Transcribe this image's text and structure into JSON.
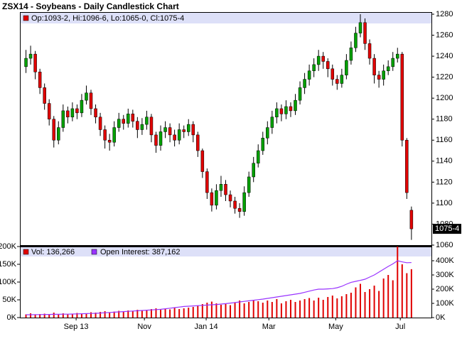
{
  "chart_data": {
    "type": "candlestick",
    "title": "ZSX14 - Soybeans - Daily Candlestick Chart",
    "info": "Op:1093-2, Hi:1096-6, Lo:1065-0, Cl:1075-4",
    "last_label": "1075-4",
    "up_color": "#00a000",
    "down_color": "#e00000",
    "xlim": [
      -1,
      87
    ],
    "xticks": [
      {
        "value": 10.8,
        "label": "Sep 13"
      },
      {
        "value": 25.5,
        "label": "Nov"
      },
      {
        "value": 38.8,
        "label": "Jan 14"
      },
      {
        "value": 52.3,
        "label": "Mar"
      },
      {
        "value": 66.7,
        "label": "May"
      },
      {
        "value": 80.6,
        "label": "Jul"
      }
    ],
    "ylim": [
      1060,
      1280
    ],
    "yticks": [
      1060,
      1080,
      1100,
      1120,
      1140,
      1160,
      1180,
      1200,
      1220,
      1240,
      1260,
      1280
    ],
    "open": [
      1230,
      1238,
      1242,
      1225,
      1210,
      1195,
      1180,
      1160,
      1172,
      1188,
      1182,
      1190,
      1186,
      1198,
      1205,
      1190,
      1182,
      1170,
      1160,
      1158,
      1172,
      1180,
      1176,
      1185,
      1178,
      1170,
      1175,
      1182,
      1165,
      1155,
      1168,
      1172,
      1165,
      1160,
      1170,
      1168,
      1175,
      1165,
      1150,
      1130,
      1110,
      1098,
      1112,
      1118,
      1108,
      1102,
      1095,
      1092,
      1110,
      1125,
      1138,
      1150,
      1162,
      1172,
      1182,
      1190,
      1185,
      1192,
      1188,
      1198,
      1210,
      1218,
      1226,
      1232,
      1240,
      1235,
      1228,
      1218,
      1214,
      1222,
      1236,
      1248,
      1262,
      1272,
      1252,
      1238,
      1222,
      1218,
      1226,
      1230,
      1238,
      1242,
      1160,
      1093.25
    ],
    "high": [
      1246,
      1250,
      1245,
      1228,
      1214,
      1199,
      1183,
      1178,
      1194,
      1192,
      1196,
      1194,
      1204,
      1212,
      1208,
      1194,
      1186,
      1174,
      1166,
      1178,
      1186,
      1184,
      1190,
      1189,
      1182,
      1181,
      1188,
      1185,
      1168,
      1174,
      1178,
      1176,
      1170,
      1176,
      1174,
      1180,
      1178,
      1168,
      1152,
      1133,
      1114,
      1118,
      1126,
      1122,
      1112,
      1106,
      1100,
      1116,
      1130,
      1144,
      1156,
      1168,
      1178,
      1188,
      1196,
      1194,
      1198,
      1196,
      1204,
      1216,
      1224,
      1232,
      1238,
      1246,
      1244,
      1238,
      1232,
      1222,
      1228,
      1242,
      1254,
      1268,
      1280,
      1276,
      1256,
      1242,
      1226,
      1232,
      1236,
      1244,
      1248,
      1244,
      1162,
      1096.75
    ],
    "low": [
      1224,
      1232,
      1218,
      1204,
      1189,
      1174,
      1153,
      1156,
      1168,
      1176,
      1178,
      1180,
      1182,
      1194,
      1184,
      1176,
      1164,
      1152,
      1150,
      1154,
      1168,
      1170,
      1172,
      1172,
      1162,
      1165,
      1170,
      1158,
      1148,
      1150,
      1162,
      1158,
      1154,
      1156,
      1162,
      1164,
      1158,
      1144,
      1124,
      1104,
      1092,
      1094,
      1106,
      1102,
      1096,
      1090,
      1086,
      1088,
      1106,
      1120,
      1134,
      1146,
      1156,
      1166,
      1176,
      1178,
      1180,
      1182,
      1184,
      1194,
      1204,
      1212,
      1220,
      1226,
      1228,
      1220,
      1212,
      1208,
      1210,
      1218,
      1232,
      1244,
      1258,
      1246,
      1232,
      1214,
      1210,
      1212,
      1222,
      1226,
      1234,
      1154,
      1104,
      1065
    ],
    "close": [
      1238,
      1242,
      1225,
      1210,
      1195,
      1180,
      1160,
      1172,
      1188,
      1182,
      1190,
      1186,
      1198,
      1205,
      1190,
      1182,
      1170,
      1160,
      1158,
      1172,
      1180,
      1176,
      1185,
      1178,
      1170,
      1175,
      1182,
      1165,
      1155,
      1168,
      1172,
      1165,
      1160,
      1170,
      1168,
      1175,
      1165,
      1150,
      1130,
      1110,
      1098,
      1112,
      1118,
      1108,
      1102,
      1095,
      1092,
      1110,
      1125,
      1138,
      1150,
      1162,
      1172,
      1182,
      1190,
      1185,
      1192,
      1188,
      1198,
      1210,
      1218,
      1226,
      1232,
      1240,
      1235,
      1228,
      1218,
      1214,
      1222,
      1236,
      1248,
      1262,
      1272,
      1252,
      1238,
      1222,
      1218,
      1226,
      1230,
      1238,
      1242,
      1160,
      1110,
      1075.5
    ],
    "volume": {
      "label": "Vol: 136,266",
      "color": "#e00000",
      "ylim": [
        0,
        200000
      ],
      "yticks": [
        {
          "value": 0,
          "label": "0K"
        },
        {
          "value": 50000,
          "label": "50K"
        },
        {
          "value": 100000,
          "label": "100K"
        },
        {
          "value": 150000,
          "label": "150K"
        },
        {
          "value": 200000,
          "label": "200K"
        }
      ],
      "values": [
        9000,
        12000,
        8000,
        10000,
        11000,
        9000,
        14000,
        10000,
        12000,
        9000,
        11000,
        13000,
        10000,
        12000,
        15000,
        14000,
        16000,
        18000,
        15000,
        17000,
        19000,
        16000,
        20000,
        18000,
        22000,
        19000,
        21000,
        24000,
        26000,
        22000,
        25000,
        23000,
        27000,
        24000,
        26000,
        28000,
        30000,
        34000,
        38000,
        42000,
        45000,
        40000,
        36000,
        38000,
        35000,
        42000,
        48000,
        40000,
        44000,
        50000,
        46000,
        42000,
        48000,
        44000,
        52000,
        40000,
        46000,
        50000,
        44000,
        48000,
        52000,
        55000,
        48000,
        56000,
        50000,
        58000,
        62000,
        54000,
        60000,
        66000,
        70000,
        85000,
        95000,
        72000,
        80000,
        90000,
        75000,
        110000,
        120000,
        105000,
        200000,
        150000,
        125000,
        136266
      ]
    },
    "open_interest": {
      "label": "Open Interest: 387,162",
      "color": "#9933ff",
      "axis": "y2",
      "y2lim": [
        0,
        500000
      ],
      "y2ticks": [
        {
          "value": 0,
          "label": "0K"
        },
        {
          "value": 100000,
          "label": "100K"
        },
        {
          "value": 200000,
          "label": "200K"
        },
        {
          "value": 300000,
          "label": "300K"
        },
        {
          "value": 400000,
          "label": "400K"
        }
      ],
      "values": [
        20000,
        20000,
        21000,
        21000,
        22000,
        22000,
        23000,
        23000,
        24000,
        24000,
        25000,
        26000,
        27000,
        28000,
        29000,
        30000,
        32000,
        34000,
        36000,
        38000,
        40000,
        42000,
        44000,
        46000,
        48000,
        50000,
        52000,
        54000,
        56000,
        58000,
        62000,
        66000,
        70000,
        74000,
        78000,
        80000,
        82000,
        84000,
        86000,
        88000,
        90000,
        92000,
        95000,
        98000,
        102000,
        106000,
        110000,
        114000,
        118000,
        122000,
        126000,
        130000,
        135000,
        140000,
        145000,
        150000,
        155000,
        160000,
        165000,
        170000,
        178000,
        186000,
        194000,
        200000,
        200000,
        202000,
        204000,
        210000,
        220000,
        235000,
        248000,
        255000,
        262000,
        270000,
        285000,
        300000,
        320000,
        340000,
        360000,
        378000,
        400000,
        392000,
        386000,
        387162
      ]
    }
  }
}
